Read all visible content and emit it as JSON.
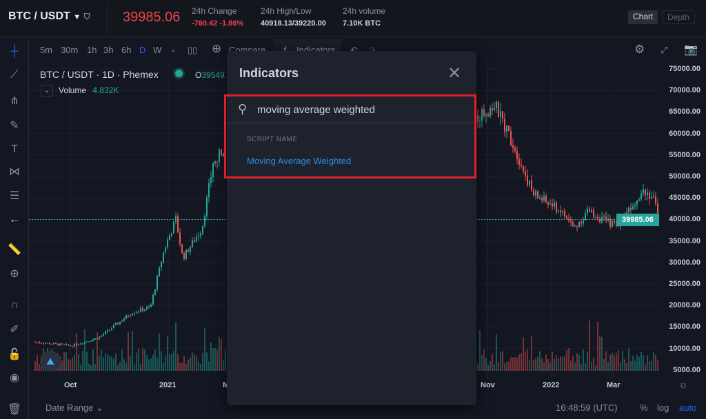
{
  "header": {
    "symbol": "BTC / USDT",
    "last_price": "39985.06",
    "change_label": "24h Change",
    "change_value": "-760.42 -1.86%",
    "highlow_label": "24h High/Low",
    "highlow_value": "40918.13/39220.00",
    "volume_label": "24h volume",
    "volume_value": "7.10K BTC",
    "tabs": [
      "Chart",
      "Depth"
    ],
    "active_tab": "Chart"
  },
  "toolbar": {
    "intervals": [
      "5m",
      "30m",
      "1h",
      "3h",
      "6h",
      "D",
      "W"
    ],
    "active_interval": "D",
    "compare_label": "Compare",
    "indicators_label": "Indicators"
  },
  "legend": {
    "title": "BTC / USDT · 1D · Phemex",
    "open_prefix": "O",
    "open_value": "39549.",
    "volume_label": "Volume",
    "volume_value": "4.832K"
  },
  "y_axis": [
    "75000.00",
    "70000.00",
    "65000.00",
    "60000.00",
    "55000.00",
    "50000.00",
    "45000.00",
    "40000.00",
    "35000.00",
    "30000.00",
    "25000.00",
    "20000.00",
    "15000.00",
    "10000.00",
    "5000.00"
  ],
  "current_price_tag": "39985.06",
  "x_axis": [
    "Oct",
    "2021",
    "M",
    "Nov",
    "2022",
    "Mar"
  ],
  "modal": {
    "title": "Indicators",
    "search_value": "moving average weighted",
    "section_label": "SCRIPT NAME",
    "results": [
      "Moving Average Weighted"
    ]
  },
  "bottom": {
    "date_range": "Date Range",
    "time": "16:48:59 (UTC)",
    "percent": "%",
    "log": "log",
    "auto": "auto"
  },
  "colors": {
    "up": "#26a69a",
    "down": "#ef5350",
    "accent": "#2962ff",
    "highlight": "#e0202a"
  }
}
